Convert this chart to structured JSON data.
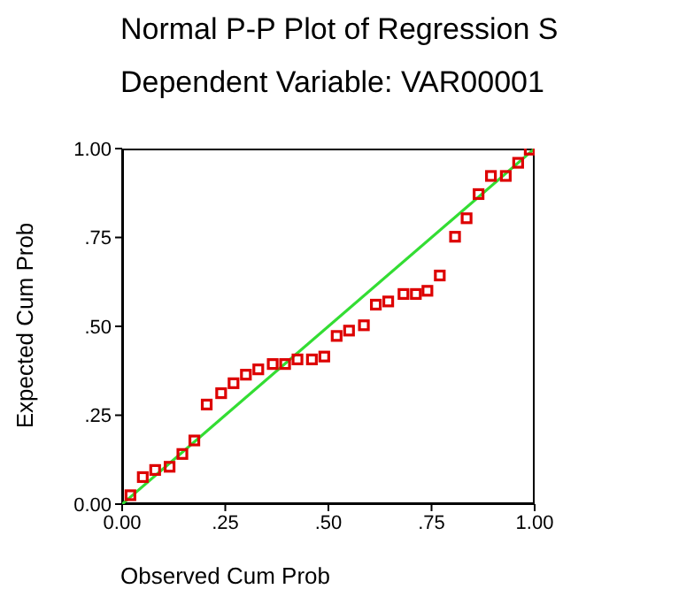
{
  "chart_data": {
    "type": "scatter",
    "title": "Normal P-P Plot of Regression S",
    "subtitle": "Dependent Variable: VAR00001",
    "xlabel": "Observed Cum Prob",
    "ylabel": "Expected Cum Prob",
    "xlim": [
      0,
      1
    ],
    "ylim": [
      0,
      1
    ],
    "xticks": [
      {
        "value": 0,
        "label": "0.00"
      },
      {
        "value": 0.25,
        "label": ".25"
      },
      {
        "value": 0.5,
        "label": ".50"
      },
      {
        "value": 0.75,
        "label": ".75"
      },
      {
        "value": 1,
        "label": "1.00"
      }
    ],
    "yticks": [
      {
        "value": 0,
        "label": "0.00"
      },
      {
        "value": 0.25,
        "label": ".25"
      },
      {
        "value": 0.5,
        "label": ".50"
      },
      {
        "value": 0.75,
        "label": ".75"
      },
      {
        "value": 1,
        "label": "1.00"
      }
    ],
    "grid": false,
    "series": [
      {
        "type": "line",
        "marker": "none",
        "color": "#33dd33",
        "x": [
          0,
          1
        ],
        "values": [
          0,
          1
        ]
      },
      {
        "marker": "square",
        "color": "#dd0000",
        "x": [
          0.02,
          0.05,
          0.08,
          0.115,
          0.146,
          0.175,
          0.205,
          0.24,
          0.27,
          0.3,
          0.33,
          0.365,
          0.395,
          0.425,
          0.46,
          0.49,
          0.52,
          0.55,
          0.586,
          0.615,
          0.645,
          0.682,
          0.712,
          0.74,
          0.77,
          0.807,
          0.835,
          0.864,
          0.894,
          0.93,
          0.96,
          0.988
        ],
        "values": [
          0.025,
          0.076,
          0.096,
          0.105,
          0.141,
          0.179,
          0.28,
          0.312,
          0.34,
          0.364,
          0.379,
          0.394,
          0.394,
          0.407,
          0.407,
          0.415,
          0.473,
          0.488,
          0.503,
          0.561,
          0.57,
          0.591,
          0.591,
          0.6,
          0.643,
          0.752,
          0.804,
          0.872,
          0.923,
          0.923,
          0.96,
          0.997
        ]
      }
    ]
  }
}
